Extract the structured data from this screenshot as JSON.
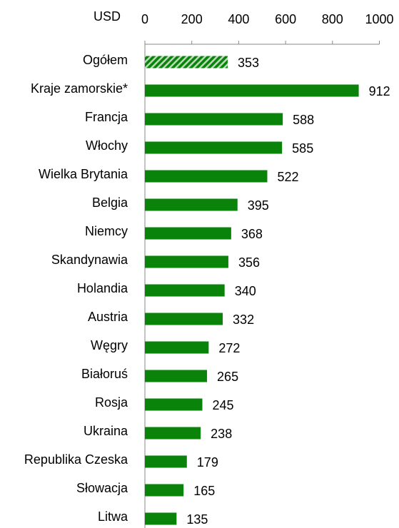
{
  "chart_data": {
    "type": "bar",
    "orientation": "horizontal",
    "x_axis_label": "USD",
    "categories": [
      "Ogółem",
      "Kraje zamorskie*",
      "Francja",
      "Włochy",
      "Wielka Brytania",
      "Belgia",
      "Niemcy",
      "Skandynawia",
      "Holandia",
      "Austria",
      "Węgry",
      "Białoruś",
      "Rosja",
      "Ukraina",
      "Republika Czeska",
      "Słowacja",
      "Litwa"
    ],
    "values": [
      353,
      912,
      588,
      585,
      522,
      395,
      368,
      356,
      340,
      332,
      272,
      265,
      245,
      238,
      179,
      165,
      135
    ],
    "color": "#0a830a",
    "hatched": [
      0
    ],
    "xlim": [
      0,
      1000
    ],
    "xticks": [
      0,
      200,
      400,
      600,
      800,
      1000
    ],
    "grid": false
  }
}
